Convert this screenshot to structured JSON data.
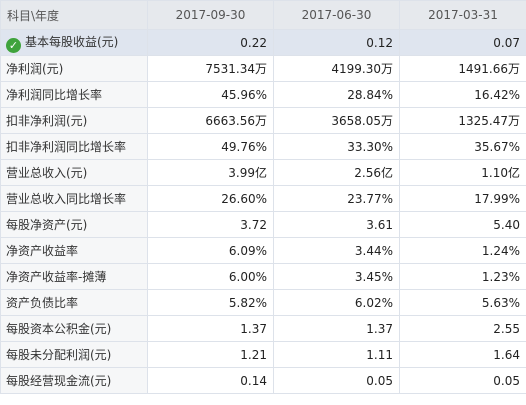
{
  "header": {
    "label": "科目\\年度",
    "dates": [
      "2017-09-30",
      "2017-06-30",
      "2017-03-31"
    ]
  },
  "rows": [
    {
      "label": "基本每股收益(元)",
      "values": [
        "0.22",
        "0.12",
        "0.07"
      ],
      "selected": true,
      "icon": "check-circle-icon"
    },
    {
      "label": "净利润(元)",
      "values": [
        "7531.34万",
        "4199.30万",
        "1491.66万"
      ]
    },
    {
      "label": "净利润同比增长率",
      "values": [
        "45.96%",
        "28.84%",
        "16.42%"
      ]
    },
    {
      "label": "扣非净利润(元)",
      "values": [
        "6663.56万",
        "3658.05万",
        "1325.47万"
      ]
    },
    {
      "label": "扣非净利润同比增长率",
      "values": [
        "49.76%",
        "33.30%",
        "35.67%"
      ]
    },
    {
      "label": "营业总收入(元)",
      "values": [
        "3.99亿",
        "2.56亿",
        "1.10亿"
      ]
    },
    {
      "label": "营业总收入同比增长率",
      "values": [
        "26.60%",
        "23.77%",
        "17.99%"
      ]
    },
    {
      "label": "每股净资产(元)",
      "values": [
        "3.72",
        "3.61",
        "5.40"
      ]
    },
    {
      "label": "净资产收益率",
      "values": [
        "6.09%",
        "3.44%",
        "1.24%"
      ]
    },
    {
      "label": "净资产收益率-摊薄",
      "values": [
        "6.00%",
        "3.45%",
        "1.23%"
      ]
    },
    {
      "label": "资产负债比率",
      "values": [
        "5.82%",
        "6.02%",
        "5.63%"
      ]
    },
    {
      "label": "每股资本公积金(元)",
      "values": [
        "1.37",
        "1.37",
        "2.55"
      ]
    },
    {
      "label": "每股未分配利润(元)",
      "values": [
        "1.21",
        "1.11",
        "1.64"
      ]
    },
    {
      "label": "每股经营现金流(元)",
      "values": [
        "0.14",
        "0.05",
        "0.05"
      ]
    }
  ],
  "colors": {
    "header_bg": "#e6e9ed",
    "selected_row_bg": "#dfe5ef",
    "check_icon": "#3fa33c"
  }
}
